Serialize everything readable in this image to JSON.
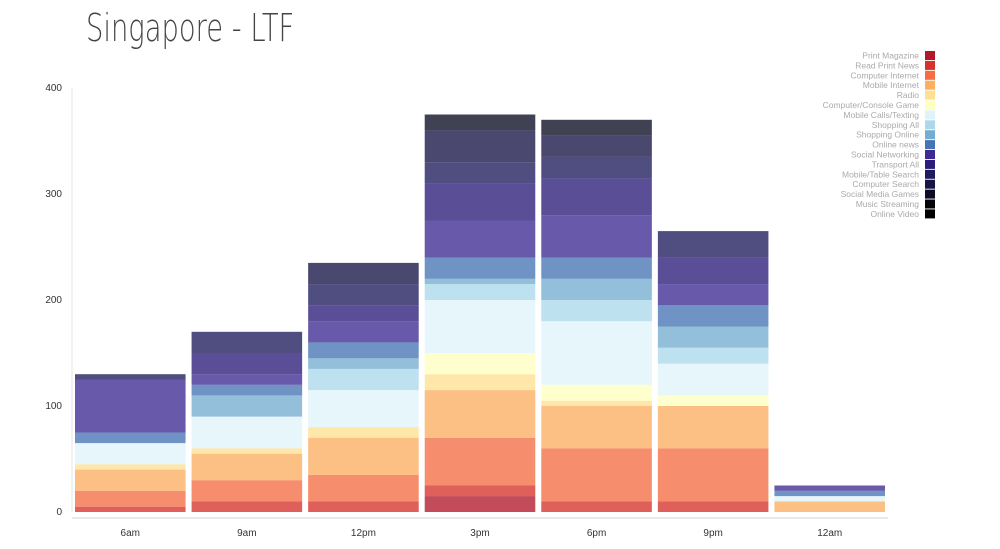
{
  "chart_data": {
    "type": "bar",
    "stacked": true,
    "title": "Singapore - LTF",
    "xlabel": "",
    "ylabel": "",
    "ylim": [
      0,
      400
    ],
    "yticks": [
      0,
      100,
      200,
      300,
      400
    ],
    "categories": [
      "6am",
      "9am",
      "12pm",
      "3pm",
      "6pm",
      "9pm",
      "12am"
    ],
    "legend_position": "top-right",
    "series": [
      {
        "name": "Print Magazine",
        "color": "#b2182b",
        "values": [
          0,
          0,
          0,
          15,
          0,
          0,
          0
        ]
      },
      {
        "name": "Read Print News",
        "color": "#d6322b",
        "values": [
          5,
          10,
          10,
          10,
          10,
          10,
          0
        ]
      },
      {
        "name": "Computer Internet",
        "color": "#f46d43",
        "values": [
          15,
          20,
          25,
          45,
          50,
          50,
          0
        ]
      },
      {
        "name": "Mobile Internet",
        "color": "#fdae61",
        "values": [
          20,
          25,
          35,
          45,
          40,
          40,
          10
        ]
      },
      {
        "name": "Radio",
        "color": "#fee090",
        "values": [
          5,
          5,
          10,
          15,
          5,
          0,
          0
        ]
      },
      {
        "name": "Computer/Console Game",
        "color": "#ffffbf",
        "values": [
          0,
          0,
          0,
          20,
          15,
          10,
          0
        ]
      },
      {
        "name": "Mobile Calls/Texting",
        "color": "#e0f3f8",
        "values": [
          20,
          30,
          35,
          50,
          60,
          30,
          5
        ]
      },
      {
        "name": "Shopping All",
        "color": "#abd9e9",
        "values": [
          0,
          0,
          20,
          15,
          20,
          15,
          0
        ]
      },
      {
        "name": "Shopping Online",
        "color": "#74add1",
        "values": [
          0,
          20,
          10,
          5,
          20,
          20,
          0
        ]
      },
      {
        "name": "Online news",
        "color": "#4575b4",
        "values": [
          10,
          10,
          15,
          20,
          20,
          20,
          5
        ]
      },
      {
        "name": "Social Networking",
        "color": "#3f2a94",
        "values": [
          50,
          10,
          20,
          35,
          40,
          20,
          5
        ]
      },
      {
        "name": "Transport All",
        "color": "#2c1d7a",
        "values": [
          0,
          20,
          15,
          35,
          35,
          25,
          0
        ]
      },
      {
        "name": "Mobile/Table Search",
        "color": "#1f1c5e",
        "values": [
          5,
          20,
          20,
          20,
          20,
          25,
          0
        ]
      },
      {
        "name": "Computer Search",
        "color": "#171446",
        "values": [
          0,
          0,
          20,
          30,
          20,
          0,
          0
        ]
      },
      {
        "name": "Social Media Games",
        "color": "#0c0c24",
        "values": [
          0,
          0,
          0,
          15,
          15,
          0,
          0
        ]
      },
      {
        "name": "Music Streaming",
        "color": "#050509",
        "values": [
          0,
          0,
          0,
          0,
          0,
          0,
          0
        ]
      },
      {
        "name": "Online Video",
        "color": "#000000",
        "values": [
          0,
          0,
          0,
          0,
          0,
          0,
          0
        ]
      }
    ]
  }
}
